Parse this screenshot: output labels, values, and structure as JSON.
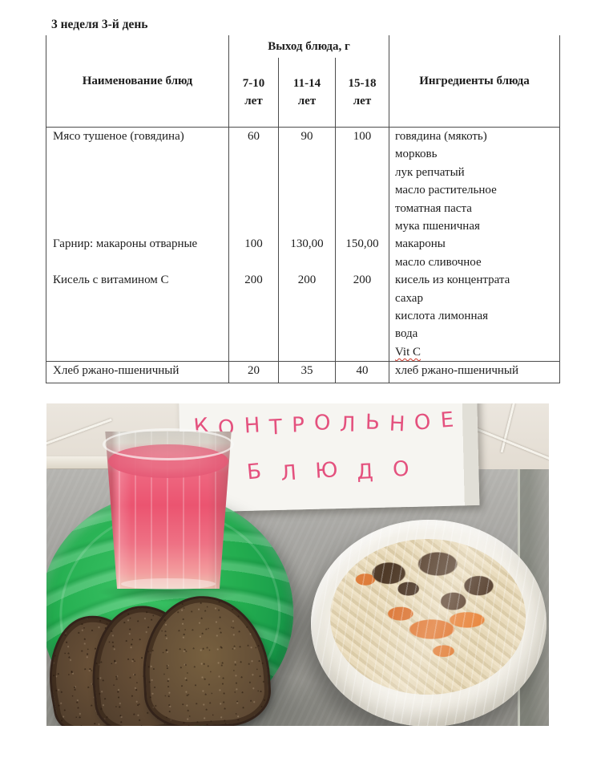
{
  "document": {
    "title": "3 неделя 3-й день",
    "table": {
      "headers": {
        "name": "Наименование блюд",
        "output_group": "Выход блюда, г",
        "age_cols": [
          "7-10",
          "11-14",
          "15-18"
        ],
        "age_unit": "лет",
        "ingredients": "Ингредиенты блюда"
      },
      "rows": [
        {
          "name": "Мясо тушеное (говядина)",
          "values": [
            "60",
            "90",
            "100"
          ],
          "ingredients": [
            "говядина (мякоть)",
            "морковь",
            "лук репчатый",
            "масло растительное",
            "томатная паста",
            "мука пшеничная"
          ]
        },
        {
          "name": "Гарнир: макароны отварные",
          "values": [
            "100",
            "130,00",
            "150,00"
          ],
          "ingredients": [
            "макароны",
            "масло сливочное"
          ]
        },
        {
          "name": "Кисель с витамином С",
          "values": [
            "200",
            "200",
            "200"
          ],
          "ingredients": [
            "кисель из концентрата",
            "сахар",
            "кислота лимонная",
            "вода",
            "Vit C"
          ]
        },
        {
          "name": "Хлеб ржано-пшеничный",
          "values": [
            "20",
            "35",
            "40"
          ],
          "ingredients": [
            "хлеб ржано-пшеничный"
          ]
        }
      ],
      "spellcheck_note": "Vit C"
    }
  },
  "photo": {
    "sign": {
      "line1": "КОНТРОЛЬНОЕ",
      "line2": "БЛЮДО",
      "text_color": "#e4517e",
      "board_color": "#f6f5f1"
    },
    "colors": {
      "tray_green": "#1ca94b",
      "drink_pink": "#ee5f78",
      "bread_brown": "#5a4331",
      "carrot_orange": "#e07a33",
      "meat_brown": "#55402d",
      "pasta_cream": "#e3d7ba",
      "steel_grey": "#a6a5a1",
      "wall_beige": "#d8cfc4"
    }
  }
}
